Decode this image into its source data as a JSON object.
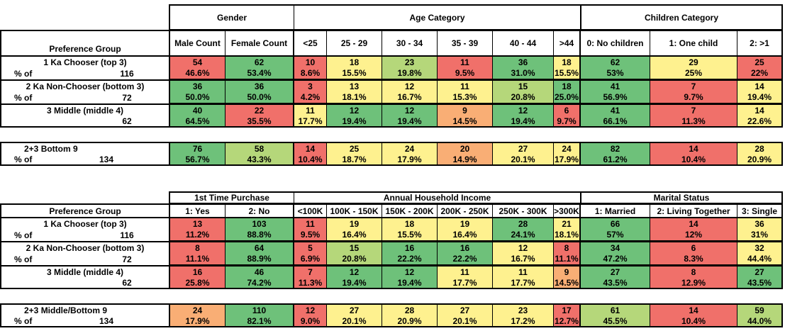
{
  "colors": {
    "red": "#f0706a",
    "orange": "#f9ae75",
    "yellow": "#fef18f",
    "lightgreen": "#b5d77a",
    "green": "#6ec17a",
    "white": "#ffffff"
  },
  "tables": [
    {
      "group_headers": [
        "Gender",
        "Age Category",
        "Children Category"
      ],
      "pref_label": "Preference Group",
      "col_labels": [
        "Male Count",
        "Female Count",
        "<25",
        "25 - 29",
        "30 - 34",
        "35 - 39",
        "40 - 44",
        ">44",
        "0: No children",
        "1: One child",
        "2: >1"
      ],
      "rows": [
        {
          "name": "1 Ka Chooser (top 3)",
          "pct_label": "% of",
          "total": "116",
          "counts": [
            "54",
            "62",
            "10",
            "18",
            "23",
            "11",
            "36",
            "18",
            "62",
            "29",
            "25"
          ],
          "pcts": [
            "46.6%",
            "53.4%",
            "8.6%",
            "15.5%",
            "19.8%",
            "9.5%",
            "31.0%",
            "15.5%",
            "53%",
            "25%",
            "22%"
          ],
          "colors": [
            "red",
            "green",
            "red",
            "yellow",
            "lightgreen",
            "red",
            "green",
            "yellow",
            "green",
            "yellow",
            "red"
          ]
        },
        {
          "name": "2 Ka Non-Chooser (bottom 3)",
          "pct_label": "% of",
          "total": "72",
          "counts": [
            "36",
            "36",
            "3",
            "13",
            "12",
            "11",
            "15",
            "18",
            "41",
            "7",
            "14"
          ],
          "pcts": [
            "50.0%",
            "50.0%",
            "4.2%",
            "18.1%",
            "16.7%",
            "15.3%",
            "20.8%",
            "25.0%",
            "56.9%",
            "9.7%",
            "19.4%"
          ],
          "colors": [
            "green",
            "green",
            "red",
            "yellow",
            "yellow",
            "yellow",
            "lightgreen",
            "green",
            "green",
            "red",
            "yellow"
          ]
        },
        {
          "name": "3 Middle (middle 4)",
          "pct_label": "",
          "total": "62",
          "counts": [
            "40",
            "22",
            "11",
            "12",
            "12",
            "9",
            "12",
            "6",
            "41",
            "7",
            "14"
          ],
          "pcts": [
            "64.5%",
            "35.5%",
            "17.7%",
            "19.4%",
            "19.4%",
            "14.5%",
            "19.4%",
            "9.7%",
            "66.1%",
            "11.3%",
            "22.6%"
          ],
          "colors": [
            "green",
            "red",
            "yellow",
            "green",
            "green",
            "orange",
            "green",
            "red",
            "green",
            "red",
            "yellow"
          ]
        }
      ],
      "summary": {
        "name": "2+3 Bottom 9",
        "pct_label": "% of",
        "total": "134",
        "counts": [
          "76",
          "58",
          "14",
          "25",
          "24",
          "20",
          "27",
          "24",
          "82",
          "14",
          "28"
        ],
        "pcts": [
          "56.7%",
          "43.3%",
          "10.4%",
          "18.7%",
          "17.9%",
          "14.9%",
          "20.1%",
          "17.9%",
          "61.2%",
          "10.4%",
          "20.9%"
        ],
        "colors": [
          "green",
          "lightgreen",
          "red",
          "yellow",
          "yellow",
          "orange",
          "yellow",
          "yellow",
          "green",
          "red",
          "yellow"
        ]
      }
    },
    {
      "group_headers": [
        "1st Time Purchase",
        "Annual Household Income",
        "Marital Status"
      ],
      "pref_label": "Preference Group",
      "col_labels": [
        "1: Yes",
        "2: No",
        "<100K",
        "100K - 150K",
        "150K - 200K",
        "200K - 250K",
        "250K - 300K",
        ">300K",
        "1: Married",
        "2: Living Together",
        "3: Single"
      ],
      "rows": [
        {
          "name": "1 Ka Chooser (top 3)",
          "pct_label": "% of",
          "total": "116",
          "counts": [
            "13",
            "103",
            "11",
            "19",
            "18",
            "19",
            "28",
            "21",
            "66",
            "14",
            "36"
          ],
          "pcts": [
            "11.2%",
            "88.8%",
            "9.5%",
            "16.4%",
            "15.5%",
            "16.4%",
            "24.1%",
            "18.1%",
            "57%",
            "12%",
            "31%"
          ],
          "colors": [
            "red",
            "green",
            "red",
            "yellow",
            "yellow",
            "yellow",
            "green",
            "yellow",
            "green",
            "red",
            "yellow"
          ]
        },
        {
          "name": "2 Ka Non-Chooser (bottom 3)",
          "pct_label": "% of",
          "total": "72",
          "counts": [
            "8",
            "64",
            "5",
            "15",
            "16",
            "16",
            "12",
            "8",
            "34",
            "6",
            "32"
          ],
          "pcts": [
            "11.1%",
            "88.9%",
            "6.9%",
            "20.8%",
            "22.2%",
            "22.2%",
            "16.7%",
            "11.1%",
            "47.2%",
            "8.3%",
            "44.4%"
          ],
          "colors": [
            "red",
            "green",
            "red",
            "lightgreen",
            "green",
            "green",
            "yellow",
            "red",
            "green",
            "red",
            "yellow"
          ]
        },
        {
          "name": "3 Middle (middle 4)",
          "pct_label": "",
          "total": "62",
          "counts": [
            "16",
            "46",
            "7",
            "12",
            "12",
            "11",
            "11",
            "9",
            "27",
            "8",
            "27"
          ],
          "pcts": [
            "25.8%",
            "74.2%",
            "11.3%",
            "19.4%",
            "19.4%",
            "17.7%",
            "17.7%",
            "14.5%",
            "43.5%",
            "12.9%",
            "43.5%"
          ],
          "colors": [
            "red",
            "green",
            "red",
            "green",
            "green",
            "yellow",
            "yellow",
            "orange",
            "green",
            "red",
            "green"
          ]
        }
      ],
      "summary": {
        "name": "2+3 Middle/Bottom 9",
        "pct_label": "% of",
        "total": "134",
        "counts": [
          "24",
          "110",
          "12",
          "27",
          "28",
          "27",
          "23",
          "17",
          "61",
          "14",
          "59"
        ],
        "pcts": [
          "17.9%",
          "82.1%",
          "9.0%",
          "20.1%",
          "20.9%",
          "20.1%",
          "17.2%",
          "12.7%",
          "45.5%",
          "10.4%",
          "44.0%"
        ],
        "colors": [
          "orange",
          "green",
          "red",
          "yellow",
          "yellow",
          "yellow",
          "yellow",
          "red",
          "lightgreen",
          "red",
          "lightgreen"
        ]
      }
    }
  ]
}
